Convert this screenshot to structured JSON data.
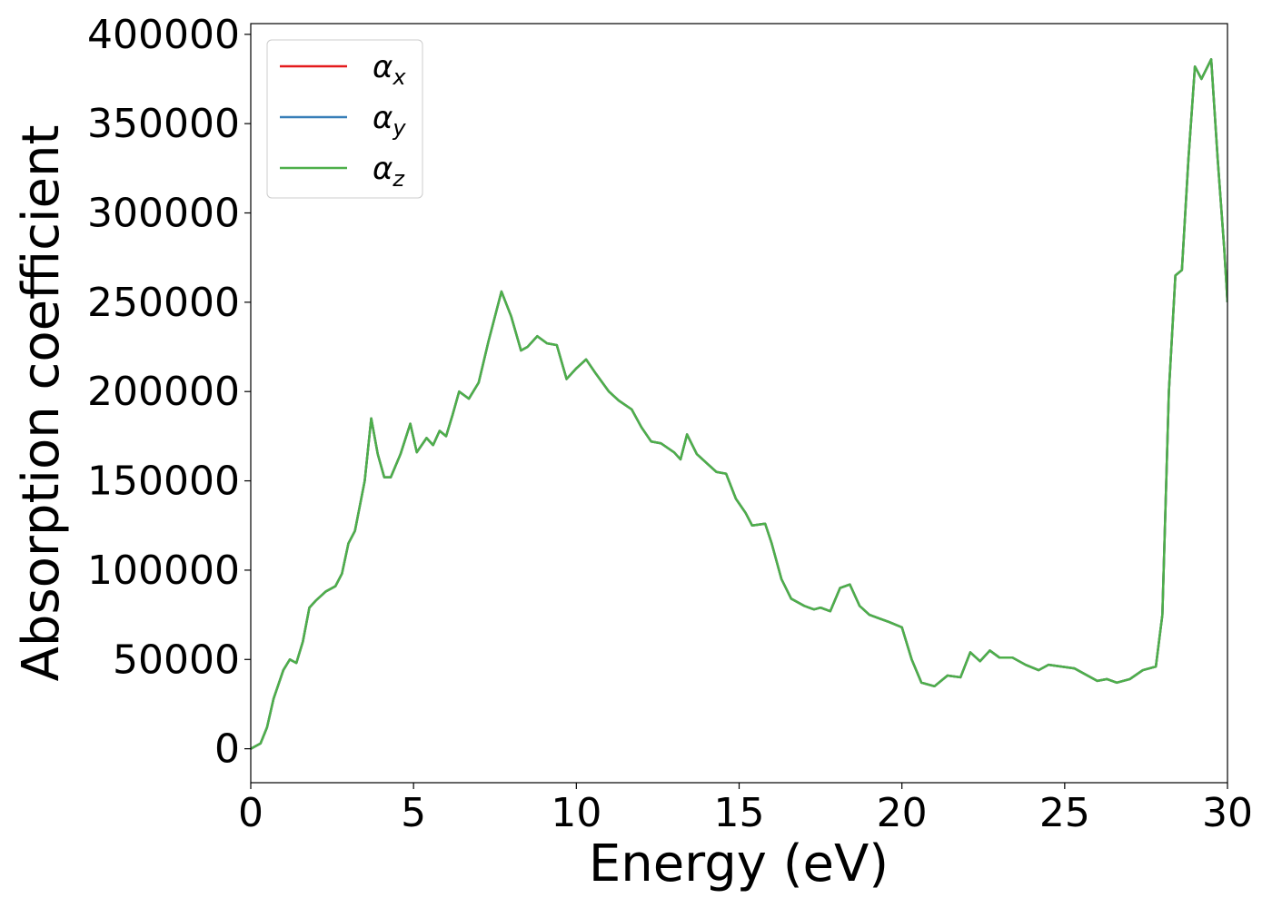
{
  "chart_data": {
    "type": "line",
    "x_label": "Energy (eV)",
    "y_label": "Absorption coefficient",
    "x": [
      0,
      0.3,
      0.5,
      0.7,
      1.0,
      1.2,
      1.4,
      1.6,
      1.8,
      2.0,
      2.3,
      2.6,
      2.8,
      3.0,
      3.2,
      3.5,
      3.7,
      3.9,
      4.1,
      4.3,
      4.6,
      4.9,
      5.1,
      5.4,
      5.6,
      5.8,
      6.0,
      6.2,
      6.4,
      6.7,
      7.0,
      7.3,
      7.7,
      8.0,
      8.3,
      8.5,
      8.8,
      9.1,
      9.4,
      9.7,
      10.0,
      10.3,
      10.6,
      11.0,
      11.3,
      11.7,
      12.0,
      12.3,
      12.6,
      13.0,
      13.2,
      13.4,
      13.7,
      14.0,
      14.3,
      14.6,
      14.9,
      15.2,
      15.4,
      15.8,
      16.0,
      16.3,
      16.6,
      17.0,
      17.3,
      17.5,
      17.8,
      18.1,
      18.4,
      18.7,
      19.0,
      19.3,
      19.6,
      20.0,
      20.3,
      20.6,
      21.0,
      21.4,
      21.8,
      22.1,
      22.4,
      22.7,
      23.0,
      23.4,
      23.8,
      24.2,
      24.5,
      24.9,
      25.3,
      25.7,
      26.0,
      26.3,
      26.6,
      27.0,
      27.4,
      27.8,
      28.0,
      28.2,
      28.4,
      28.6,
      28.8,
      29.0,
      29.2,
      29.5,
      29.7,
      29.9,
      30.0
    ],
    "series": [
      {
        "name": "αx",
        "color": "#e41a1c",
        "values": [
          0,
          3000,
          12000,
          28000,
          44000,
          50000,
          48000,
          60000,
          79000,
          83000,
          88000,
          91000,
          98000,
          115000,
          122000,
          150000,
          185000,
          165000,
          152000,
          152000,
          165000,
          182000,
          166000,
          174000,
          170000,
          178000,
          175000,
          187000,
          200000,
          196000,
          205000,
          228000,
          256000,
          242000,
          223000,
          225000,
          231000,
          227000,
          226000,
          207000,
          213000,
          218000,
          210000,
          200000,
          195000,
          190000,
          180000,
          172000,
          171000,
          166000,
          162000,
          176000,
          165000,
          160000,
          155000,
          154000,
          140000,
          132000,
          125000,
          126000,
          115000,
          95000,
          84000,
          80000,
          78000,
          79000,
          77000,
          90000,
          92000,
          80000,
          75000,
          73000,
          71000,
          68000,
          50000,
          37000,
          35000,
          41000,
          40000,
          54000,
          49000,
          55000,
          51000,
          51000,
          47000,
          44000,
          47000,
          46000,
          45000,
          41000,
          38000,
          39000,
          37000,
          39000,
          44000,
          46000,
          75000,
          200000,
          265000,
          268000,
          330000,
          382000,
          375000,
          386000,
          330000,
          280000,
          250000
        ]
      },
      {
        "name": "αy",
        "color": "#377eb8",
        "values": [
          0,
          3000,
          12000,
          28000,
          44000,
          50000,
          48000,
          60000,
          79000,
          83000,
          88000,
          91000,
          98000,
          115000,
          122000,
          150000,
          185000,
          165000,
          152000,
          152000,
          165000,
          182000,
          166000,
          174000,
          170000,
          178000,
          175000,
          187000,
          200000,
          196000,
          205000,
          228000,
          256000,
          242000,
          223000,
          225000,
          231000,
          227000,
          226000,
          207000,
          213000,
          218000,
          210000,
          200000,
          195000,
          190000,
          180000,
          172000,
          171000,
          166000,
          162000,
          176000,
          165000,
          160000,
          155000,
          154000,
          140000,
          132000,
          125000,
          126000,
          115000,
          95000,
          84000,
          80000,
          78000,
          79000,
          77000,
          90000,
          92000,
          80000,
          75000,
          73000,
          71000,
          68000,
          50000,
          37000,
          35000,
          41000,
          40000,
          54000,
          49000,
          55000,
          51000,
          51000,
          47000,
          44000,
          47000,
          46000,
          45000,
          41000,
          38000,
          39000,
          37000,
          39000,
          44000,
          46000,
          75000,
          200000,
          265000,
          268000,
          330000,
          382000,
          375000,
          386000,
          330000,
          280000,
          250000
        ]
      },
      {
        "name": "αz",
        "color": "#4daf4a",
        "values": [
          0,
          3000,
          12000,
          28000,
          44000,
          50000,
          48000,
          60000,
          79000,
          83000,
          88000,
          91000,
          98000,
          115000,
          122000,
          150000,
          185000,
          165000,
          152000,
          152000,
          165000,
          182000,
          166000,
          174000,
          170000,
          178000,
          175000,
          187000,
          200000,
          196000,
          205000,
          228000,
          256000,
          242000,
          223000,
          225000,
          231000,
          227000,
          226000,
          207000,
          213000,
          218000,
          210000,
          200000,
          195000,
          190000,
          180000,
          172000,
          171000,
          166000,
          162000,
          176000,
          165000,
          160000,
          155000,
          154000,
          140000,
          132000,
          125000,
          126000,
          115000,
          95000,
          84000,
          80000,
          78000,
          79000,
          77000,
          90000,
          92000,
          80000,
          75000,
          73000,
          71000,
          68000,
          50000,
          37000,
          35000,
          41000,
          40000,
          54000,
          49000,
          55000,
          51000,
          51000,
          47000,
          44000,
          47000,
          46000,
          45000,
          41000,
          38000,
          39000,
          37000,
          39000,
          44000,
          46000,
          75000,
          200000,
          265000,
          268000,
          330000,
          382000,
          375000,
          386000,
          330000,
          280000,
          250000
        ]
      }
    ],
    "xlim": [
      0,
      30
    ],
    "xticks": [
      0,
      5,
      10,
      15,
      20,
      25,
      30
    ],
    "ylim": [
      -19000,
      406000
    ],
    "yticks": [
      0,
      50000,
      100000,
      150000,
      200000,
      250000,
      300000,
      350000,
      400000
    ],
    "legend": "upper left",
    "grid": false
  }
}
